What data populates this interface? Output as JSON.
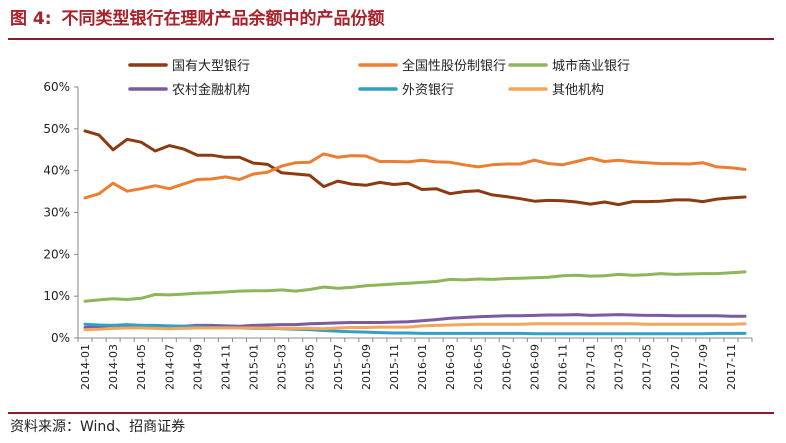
{
  "figure": {
    "label": "图 4:",
    "title": "不同类型银行在理财产品余额中的产品份额",
    "source": "资料来源：Wind、招商证券"
  },
  "chart_data": {
    "type": "line",
    "title": "",
    "xlabel": "",
    "ylabel": "",
    "ylim": [
      0,
      60
    ],
    "y_ticks": [
      "0%",
      "10%",
      "20%",
      "30%",
      "40%",
      "50%",
      "60%"
    ],
    "y_unit": "%",
    "grid": false,
    "legend_position": "top",
    "x_tick_labels": [
      "2014-01",
      "2014-03",
      "2014-05",
      "2014-07",
      "2014-09",
      "2014-11",
      "2015-01",
      "2015-03",
      "2015-05",
      "2015-07",
      "2015-09",
      "2015-11",
      "2016-01",
      "2016-03",
      "2016-05",
      "2016-07",
      "2016-09",
      "2016-11",
      "2017-01",
      "2017-03",
      "2017-05",
      "2017-07",
      "2017-09",
      "2017-11"
    ],
    "x": [
      "2014-01",
      "2014-02",
      "2014-03",
      "2014-04",
      "2014-05",
      "2014-06",
      "2014-07",
      "2014-08",
      "2014-09",
      "2014-10",
      "2014-11",
      "2014-12",
      "2015-01",
      "2015-02",
      "2015-03",
      "2015-04",
      "2015-05",
      "2015-06",
      "2015-07",
      "2015-08",
      "2015-09",
      "2015-10",
      "2015-11",
      "2015-12",
      "2016-01",
      "2016-02",
      "2016-03",
      "2016-04",
      "2016-05",
      "2016-06",
      "2016-07",
      "2016-08",
      "2016-09",
      "2016-10",
      "2016-11",
      "2016-12",
      "2017-01",
      "2017-02",
      "2017-03",
      "2017-04",
      "2017-05",
      "2017-06",
      "2017-07",
      "2017-08",
      "2017-09",
      "2017-10",
      "2017-11",
      "2017-12"
    ],
    "series": [
      {
        "name": "国有大型银行",
        "color": "#8b3a12",
        "values": [
          49.5,
          48.5,
          45.0,
          47.5,
          46.8,
          44.7,
          46.0,
          45.2,
          43.7,
          43.7,
          43.2,
          43.2,
          41.8,
          41.5,
          39.5,
          39.2,
          38.9,
          36.2,
          37.5,
          36.8,
          36.5,
          37.2,
          36.7,
          37.0,
          35.5,
          35.7,
          34.5,
          35.0,
          35.2,
          34.2,
          33.8,
          33.3,
          32.7,
          32.9,
          32.8,
          32.5,
          32.0,
          32.5,
          31.9,
          32.6,
          32.6,
          32.7,
          33.0,
          33.0,
          32.6,
          33.2,
          33.5,
          33.7
        ]
      },
      {
        "name": "全国性股份制银行",
        "color": "#ed7d31",
        "values": [
          33.5,
          34.5,
          37.0,
          35.1,
          35.7,
          36.4,
          35.7,
          36.8,
          37.9,
          38.0,
          38.5,
          37.9,
          39.2,
          39.6,
          41.1,
          41.9,
          42.0,
          44.0,
          43.2,
          43.6,
          43.5,
          42.2,
          42.2,
          42.1,
          42.5,
          42.1,
          42.0,
          41.4,
          40.9,
          41.4,
          41.6,
          41.6,
          42.5,
          41.7,
          41.4,
          42.2,
          43.0,
          42.2,
          42.5,
          42.1,
          41.9,
          41.7,
          41.7,
          41.6,
          41.9,
          40.9,
          40.7,
          40.3
        ]
      },
      {
        "name": "城市商业银行",
        "color": "#8db55a",
        "values": [
          8.8,
          9.1,
          9.4,
          9.2,
          9.5,
          10.4,
          10.3,
          10.5,
          10.7,
          10.8,
          11.0,
          11.2,
          11.3,
          11.3,
          11.5,
          11.2,
          11.6,
          12.2,
          11.9,
          12.1,
          12.5,
          12.7,
          12.9,
          13.1,
          13.3,
          13.5,
          14.0,
          13.9,
          14.1,
          14.0,
          14.2,
          14.3,
          14.4,
          14.5,
          14.9,
          15.0,
          14.8,
          14.9,
          15.2,
          15.0,
          15.1,
          15.4,
          15.2,
          15.3,
          15.4,
          15.4,
          15.6,
          15.8
        ]
      },
      {
        "name": "农村金融机构",
        "color": "#7b5aa3",
        "values": [
          2.5,
          2.7,
          3.0,
          2.9,
          3.0,
          2.8,
          2.8,
          2.8,
          3.0,
          3.0,
          2.9,
          2.8,
          3.0,
          3.1,
          3.2,
          3.2,
          3.4,
          3.5,
          3.6,
          3.7,
          3.7,
          3.7,
          3.8,
          3.9,
          4.1,
          4.4,
          4.7,
          4.9,
          5.1,
          5.2,
          5.3,
          5.3,
          5.4,
          5.5,
          5.5,
          5.6,
          5.4,
          5.5,
          5.6,
          5.5,
          5.4,
          5.4,
          5.3,
          5.3,
          5.3,
          5.3,
          5.2,
          5.2
        ]
      },
      {
        "name": "外资银行",
        "color": "#31a0c6",
        "values": [
          3.3,
          3.1,
          3.0,
          3.2,
          3.0,
          3.0,
          2.9,
          2.8,
          2.7,
          2.5,
          2.5,
          2.4,
          2.3,
          2.3,
          2.2,
          2.1,
          2.0,
          1.8,
          1.6,
          1.5,
          1.4,
          1.3,
          1.2,
          1.2,
          1.1,
          1.1,
          1.1,
          1.1,
          1.1,
          1.1,
          1.1,
          1.1,
          1.0,
          1.0,
          1.0,
          1.0,
          1.0,
          1.0,
          1.0,
          1.0,
          1.0,
          1.0,
          1.0,
          1.0,
          1.0,
          1.1,
          1.1,
          1.1
        ]
      },
      {
        "name": "其他机构",
        "color": "#f5a55a",
        "values": [
          2.0,
          2.1,
          2.3,
          2.4,
          2.4,
          2.3,
          2.2,
          2.3,
          2.4,
          2.4,
          2.4,
          2.4,
          2.4,
          2.4,
          2.3,
          2.3,
          2.3,
          2.2,
          2.4,
          2.5,
          2.5,
          2.6,
          2.6,
          2.6,
          2.9,
          3.0,
          3.1,
          3.2,
          3.3,
          3.3,
          3.3,
          3.3,
          3.4,
          3.4,
          3.4,
          3.4,
          3.4,
          3.4,
          3.4,
          3.4,
          3.3,
          3.3,
          3.3,
          3.3,
          3.3,
          3.3,
          3.3,
          3.4
        ]
      }
    ]
  }
}
